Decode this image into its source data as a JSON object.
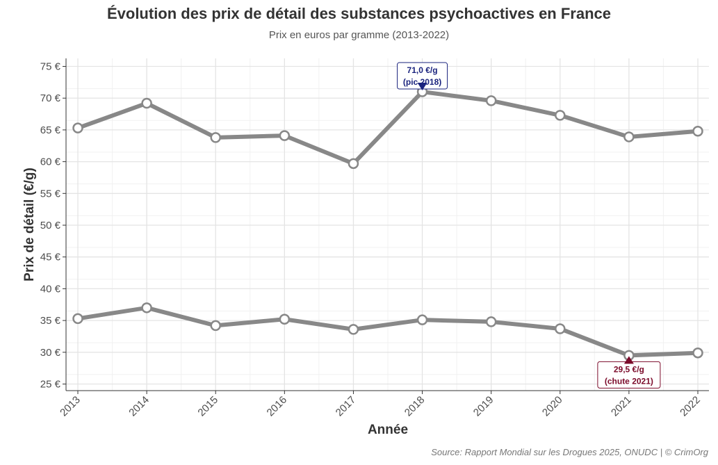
{
  "chart_data": {
    "type": "line",
    "title": "Évolution des prix de détail des substances psychoactives en France",
    "subtitle": "Prix en euros par gramme (2013-2022)",
    "xlabel": "Année",
    "ylabel": "Prix de détail (€/g)",
    "x": [
      2013,
      2014,
      2015,
      2016,
      2017,
      2018,
      2019,
      2020,
      2021,
      2022
    ],
    "x_tick_labels": [
      "2013",
      "2014",
      "2015",
      "2016",
      "2017",
      "2018",
      "2019",
      "2020",
      "2021",
      "2022"
    ],
    "y_ticks": [
      25,
      30,
      35,
      40,
      45,
      50,
      55,
      60,
      65,
      70,
      75
    ],
    "y_tick_labels": [
      "25 €",
      "30 €",
      "35 €",
      "40 €",
      "45 €",
      "50 €",
      "55 €",
      "60 €",
      "65 €",
      "70 €",
      "75 €"
    ],
    "ylim": [
      24,
      76
    ],
    "grid": true,
    "legend": "none",
    "series": [
      {
        "values": [
          65.3,
          69.2,
          63.8,
          64.1,
          59.7,
          71.0,
          69.6,
          67.3,
          63.9,
          64.8
        ],
        "color": "#888888"
      },
      {
        "values": [
          35.3,
          37.0,
          34.2,
          35.2,
          33.6,
          35.1,
          34.8,
          33.7,
          29.5,
          29.9
        ],
        "color": "#888888"
      }
    ],
    "annotations": [
      {
        "series": 0,
        "x": 2018,
        "y": 71.0,
        "line1": "71,0 €/g",
        "line2": "(pic 2018)",
        "color": "#1a237e",
        "marker": "down-triangle"
      },
      {
        "series": 1,
        "x": 2021,
        "y": 29.5,
        "line1": "29,5 €/g",
        "line2": "(chute 2021)",
        "color": "#7b0a2a",
        "marker": "up-triangle"
      }
    ]
  },
  "source": "Source: Rapport Mondial sur les Drogues 2025, ONUDC | © CrimOrg"
}
